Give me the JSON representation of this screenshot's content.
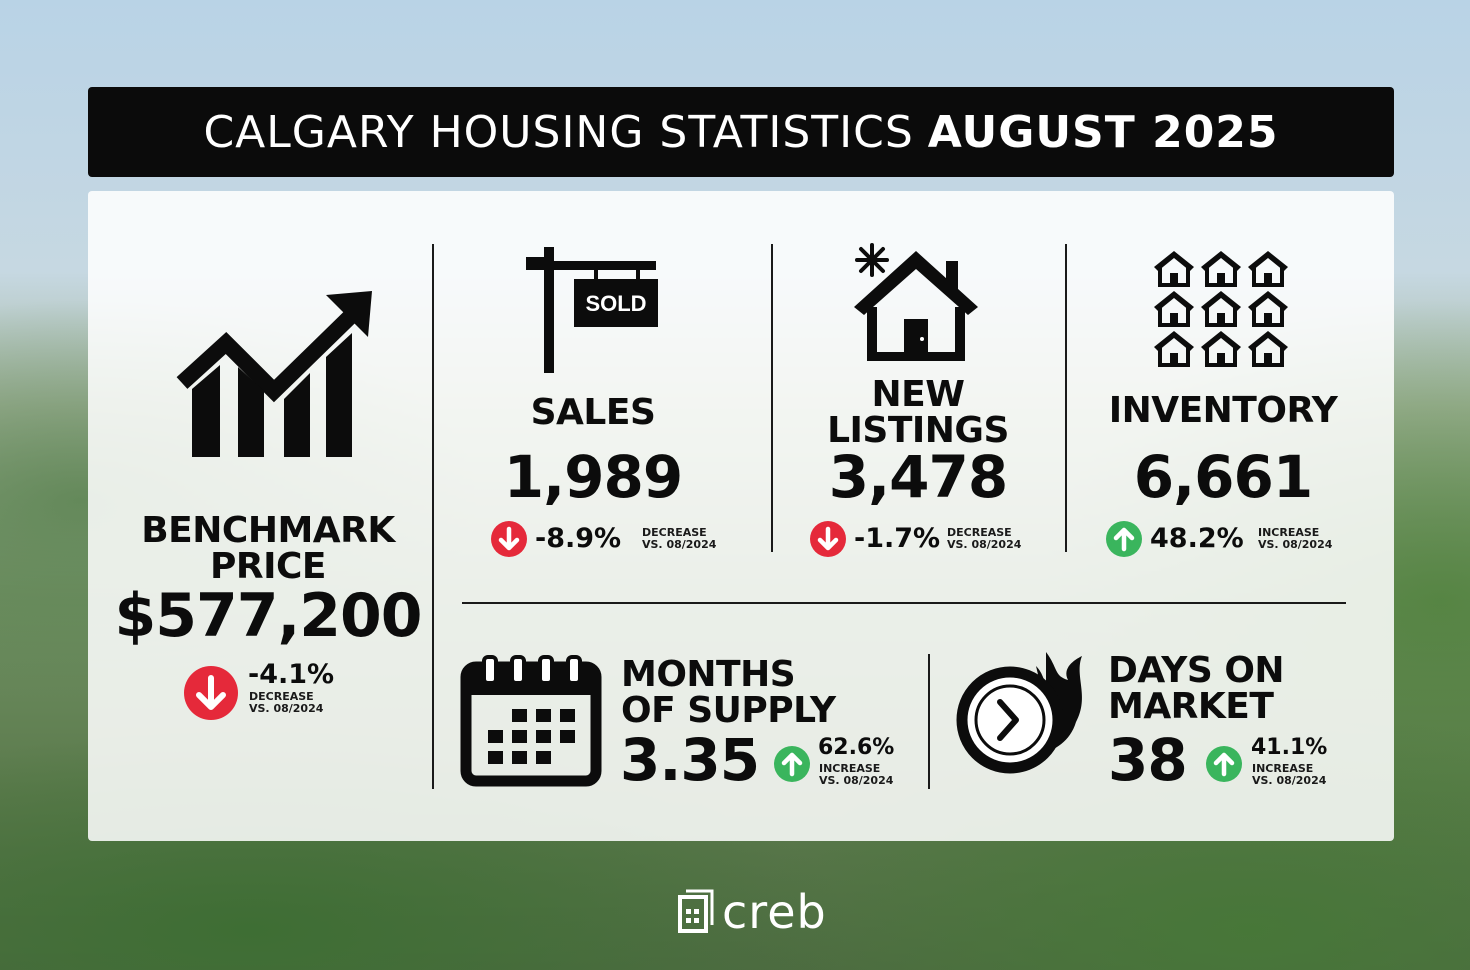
{
  "title": {
    "regular": "CALGARY HOUSING STATISTICS",
    "bold": "AUGUST 2025"
  },
  "benchmark": {
    "label_line1": "BENCHMARK",
    "label_line2": "PRICE",
    "value": "$577,200",
    "change": "-4.1%",
    "note_line1": "DECREASE",
    "note_line2": "VS. 08/2024",
    "icon": "trend-chart-icon"
  },
  "sales": {
    "label": "SALES",
    "sign_text": "SOLD",
    "value": "1,989",
    "change": "-8.9%",
    "note_line1": "DECREASE",
    "note_line2": "VS. 08/2024",
    "icon": "sold-sign-icon"
  },
  "new_listings": {
    "label_line1": "NEW",
    "label_line2": "LISTINGS",
    "value": "3,478",
    "change": "-1.7%",
    "note_line1": "DECREASE",
    "note_line2": "VS. 08/2024",
    "icon": "house-sparkle-icon"
  },
  "inventory": {
    "label": "INVENTORY",
    "value": "6,661",
    "change": "48.2%",
    "note_line1": "INCREASE",
    "note_line2": "VS. 08/2024",
    "icon": "houses-grid-icon"
  },
  "months_supply": {
    "label_line1": "MONTHS",
    "label_line2": "OF SUPPLY",
    "value": "3.35",
    "change": "62.6%",
    "note_line1": "INCREASE",
    "note_line2": "VS. 08/2024",
    "icon": "calendar-icon"
  },
  "days_on_market": {
    "label_line1": "DAYS ON",
    "label_line2": "MARKET",
    "value": "38",
    "change": "41.1%",
    "note_line1": "INCREASE",
    "note_line2": "VS. 08/2024",
    "icon": "clock-fire-icon"
  },
  "brand": {
    "name": "creb",
    "icon": "creb-logo-icon"
  },
  "colors": {
    "decrease": "#e5293a",
    "increase": "#3ab55d",
    "ink": "#0c0c0c"
  }
}
